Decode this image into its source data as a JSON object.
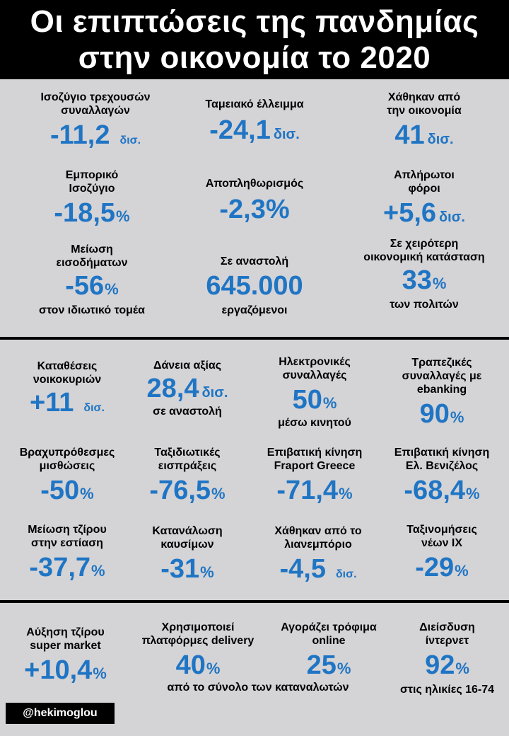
{
  "title": {
    "line1": "Οι επιπτώσεις της πανδημίας",
    "line2": "στην οικονομία το 2020"
  },
  "section1": [
    {
      "label1": "Ισοζύγιο τρεχουσών",
      "label2": "συναλλαγών",
      "value": "-11,2",
      "unit": "δισ."
    },
    {
      "label1": "Ταμειακό έλλειμμα",
      "value": "-24,1",
      "unit": "δισ."
    },
    {
      "label1": "Χάθηκαν από",
      "label2": "την οικονομία",
      "value": "41",
      "unit": "δισ."
    },
    {
      "label1": "Εμπορικό",
      "label2": "Ισοζύγιο",
      "value": "-18,5",
      "unit": "%"
    },
    {
      "label1": "Αποπληθωρισμός",
      "value": "-2,3%"
    },
    {
      "label1": "Απλήρωτοι",
      "label2": "φόροι",
      "value": "+5,6",
      "unit": "δισ."
    },
    {
      "label1": "Μείωση",
      "label2": "εισοδήματων",
      "value": "-56",
      "unit": "%",
      "sub": "στον ιδιωτικό τομέα"
    },
    {
      "label1": "Σε αναστολή",
      "value": "645.000",
      "sub": "εργαζόμενοι"
    },
    {
      "label1": "Σε χειρότερη",
      "label2": "οικονομική κατάσταση",
      "value": "33",
      "unit": "%",
      "sub": "των πολιτών"
    }
  ],
  "section2": [
    {
      "label1": "Καταθέσεις",
      "label2": "νοικοκυριών",
      "value": "+11",
      "unit": "δισ."
    },
    {
      "label1": "Δάνεια αξίας",
      "value": "28,4",
      "unit": "δισ.",
      "sub": "σε αναστολή"
    },
    {
      "label1": "Ηλεκτρονικές",
      "label2": "συναλλαγές",
      "value": "50",
      "unit": "%",
      "sub": "μέσω κινητού"
    },
    {
      "label1": "Τραπεζικές",
      "label2": "συναλλαγές με",
      "label3": "ebanking",
      "value": "90",
      "unit": "%"
    },
    {
      "label1": "Βραχυπρόθεσμες",
      "label2": "μισθώσεις",
      "value": "-50",
      "unit": "%"
    },
    {
      "label1": "Ταξιδιωτικές",
      "label2": "εισπράξεις",
      "value": "-76,5",
      "unit": "%"
    },
    {
      "label1": "Επιβατική κίνηση",
      "label2": "Fraport Greece",
      "value": "-71,4",
      "unit": "%"
    },
    {
      "label1": "Επιβατική κίνηση",
      "label2": "Ελ. Βενιζέλος",
      "value": "-68,4",
      "unit": "%"
    },
    {
      "label1": "Μείωση τζίρου",
      "label2": "στην εστίαση",
      "value": "-37,7",
      "unit": "%"
    },
    {
      "label1": "Κατανάλωση",
      "label2": "καυσίμων",
      "value": "-31",
      "unit": "%"
    },
    {
      "label1": "Χάθηκαν από το",
      "label2": "λιανεμπόριο",
      "value": "-4,5",
      "unit": "δισ."
    },
    {
      "label1": "Ταξινομήσεις",
      "label2": "νέων ΙΧ",
      "value": "-29",
      "unit": "%"
    }
  ],
  "section3": [
    {
      "label1": "Αύξηση τζίρου",
      "label2": "super market",
      "value": "+10,4",
      "unit": "%"
    },
    {
      "label1": "Χρησιμοποιεί",
      "label2": "πλατφόρμες delivery",
      "value": "40",
      "unit": "%"
    },
    {
      "label1": "Αγοράζει τρόφιμα",
      "label2": "online",
      "value": "25",
      "unit": "%"
    },
    {
      "label1": "Διείσδυση",
      "label2": "ίντερνετ",
      "value": "92",
      "unit": "%",
      "sub": "στις ηλικίες 16-74"
    }
  ],
  "section3_shared_sub": "από το σύνολο των καταναλωτών",
  "credit": "@hekimoglou",
  "colors": {
    "value": "#1f75c4",
    "background": "#d4d3d6",
    "header": "#000000"
  }
}
